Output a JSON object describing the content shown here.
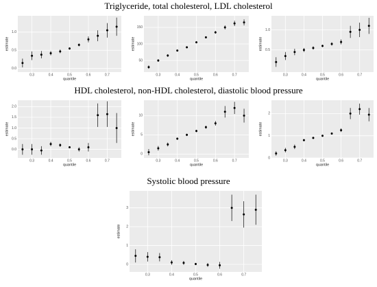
{
  "titles": [
    "Triglyceride, total cholesterol, LDL cholesterol",
    "HDL cholesterol, non-HDL cholesterol, diastolic blood pressure",
    "Systolic blood pressure"
  ],
  "chart_data": [
    {
      "type": "errorbar",
      "x_label": "quantile",
      "y_label": "estimate",
      "x": [
        0.25,
        0.3,
        0.35,
        0.4,
        0.45,
        0.5,
        0.55,
        0.6,
        0.65,
        0.7,
        0.75
      ],
      "values": [
        0.15,
        0.35,
        0.38,
        0.42,
        0.47,
        0.55,
        0.65,
        0.8,
        0.9,
        1.05,
        1.15
      ],
      "errors": [
        0.12,
        0.12,
        0.1,
        0.06,
        0.05,
        0.03,
        0.04,
        0.08,
        0.15,
        0.2,
        0.25
      ],
      "xlim": [
        0.225,
        0.775
      ],
      "xticks": [
        0.3,
        0.4,
        0.5,
        0.6,
        0.7
      ],
      "ylim": [
        -0.1,
        1.45
      ],
      "yticks": [
        {
          "value": 0,
          "label": "0.0"
        },
        0.5,
        {
          "value": 1,
          "label": "1.0"
        }
      ]
    },
    {
      "type": "errorbar",
      "x_label": "quantile",
      "y_label": "estimate",
      "x": [
        0.25,
        0.3,
        0.35,
        0.4,
        0.45,
        0.5,
        0.55,
        0.6,
        0.65,
        0.7,
        0.75
      ],
      "values": [
        30,
        50,
        65,
        80,
        90,
        105,
        120,
        135,
        150,
        162,
        165
      ],
      "errors": [
        5,
        4,
        4,
        3,
        3,
        3,
        3,
        4,
        6,
        8,
        9
      ],
      "xlim": [
        0.225,
        0.775
      ],
      "xticks": [
        0.3,
        0.4,
        0.5,
        0.6,
        0.7
      ],
      "ylim": [
        15,
        185
      ],
      "yticks": [
        50,
        100,
        150
      ]
    },
    {
      "type": "errorbar",
      "x_label": "quantile",
      "y_label": "estimate",
      "x": [
        0.25,
        0.3,
        0.35,
        0.4,
        0.45,
        0.5,
        0.55,
        0.6,
        0.65,
        0.7,
        0.75
      ],
      "values": [
        0.2,
        0.35,
        0.45,
        0.5,
        0.55,
        0.6,
        0.65,
        0.7,
        0.95,
        1.0,
        1.1
      ],
      "errors": [
        0.12,
        0.1,
        0.08,
        0.05,
        0.04,
        0.03,
        0.04,
        0.06,
        0.15,
        0.18,
        0.2
      ],
      "xlim": [
        0.225,
        0.775
      ],
      "xticks": [
        0.3,
        0.4,
        0.5,
        0.6,
        0.7
      ],
      "ylim": [
        -0.05,
        1.35
      ],
      "yticks": [
        0.5,
        {
          "value": 1,
          "label": "1.0"
        }
      ]
    },
    {
      "type": "errorbar",
      "x_label": "quantile",
      "y_label": "estimate",
      "x": [
        0.25,
        0.3,
        0.35,
        0.4,
        0.45,
        0.5,
        0.55,
        0.6,
        0.65,
        0.7,
        0.75
      ],
      "values": [
        0.0,
        0.0,
        -0.05,
        0.25,
        0.2,
        0.1,
        0.0,
        0.1,
        1.6,
        1.65,
        1.0
      ],
      "errors": [
        0.25,
        0.25,
        0.2,
        0.1,
        0.08,
        0.05,
        0.1,
        0.2,
        0.55,
        0.6,
        0.7
      ],
      "xlim": [
        0.225,
        0.775
      ],
      "xticks": [
        0.3,
        0.4,
        0.5,
        0.6,
        0.7
      ],
      "ylim": [
        -0.4,
        2.3
      ],
      "yticks": [
        {
          "value": 0,
          "label": "0.0"
        },
        0.5,
        {
          "value": 1,
          "label": "1.0"
        },
        1.5,
        {
          "value": 2,
          "label": "2.0"
        }
      ]
    },
    {
      "type": "errorbar",
      "x_label": "quantile",
      "y_label": "estimate",
      "x": [
        0.25,
        0.3,
        0.35,
        0.4,
        0.45,
        0.5,
        0.55,
        0.6,
        0.65,
        0.7,
        0.75
      ],
      "values": [
        0.5,
        1.5,
        2.5,
        4,
        5,
        6,
        7,
        8,
        11,
        12,
        10
      ],
      "errors": [
        0.8,
        0.6,
        0.5,
        0.3,
        0.3,
        0.3,
        0.4,
        0.6,
        1.5,
        1.6,
        1.8
      ],
      "xlim": [
        0.225,
        0.775
      ],
      "xticks": [
        0.3,
        0.4,
        0.5,
        0.6,
        0.7
      ],
      "ylim": [
        -1,
        14
      ],
      "yticks": [
        0,
        5,
        10
      ]
    },
    {
      "type": "errorbar",
      "x_label": "quantile",
      "y_label": "estimate",
      "x": [
        0.25,
        0.3,
        0.35,
        0.4,
        0.45,
        0.5,
        0.55,
        0.6,
        0.65,
        0.7,
        0.75
      ],
      "values": [
        0.2,
        0.35,
        0.5,
        0.8,
        0.9,
        1.0,
        1.1,
        1.25,
        2.0,
        2.2,
        1.95
      ],
      "errors": [
        0.1,
        0.1,
        0.1,
        0.05,
        0.05,
        0.05,
        0.05,
        0.08,
        0.25,
        0.25,
        0.3
      ],
      "xlim": [
        0.225,
        0.775
      ],
      "xticks": [
        0.3,
        0.4,
        0.5,
        0.6,
        0.7
      ],
      "ylim": [
        0,
        2.6
      ],
      "yticks": [
        0,
        1,
        2
      ]
    },
    {
      "type": "errorbar",
      "x_label": "quantile",
      "y_label": "estimate",
      "x": [
        0.25,
        0.3,
        0.35,
        0.4,
        0.45,
        0.5,
        0.55,
        0.6,
        0.65,
        0.7,
        0.75
      ],
      "values": [
        0.45,
        0.4,
        0.38,
        0.1,
        0.08,
        0.02,
        -0.03,
        -0.05,
        3.0,
        2.65,
        2.9
      ],
      "errors": [
        0.35,
        0.25,
        0.22,
        0.12,
        0.1,
        0.06,
        0.1,
        0.18,
        0.7,
        0.7,
        0.8
      ],
      "xlim": [
        0.225,
        0.775
      ],
      "xticks": [
        0.3,
        0.4,
        0.5,
        0.6,
        0.7
      ],
      "ylim": [
        -0.4,
        3.9
      ],
      "yticks": [
        0,
        1,
        2,
        3
      ]
    }
  ]
}
